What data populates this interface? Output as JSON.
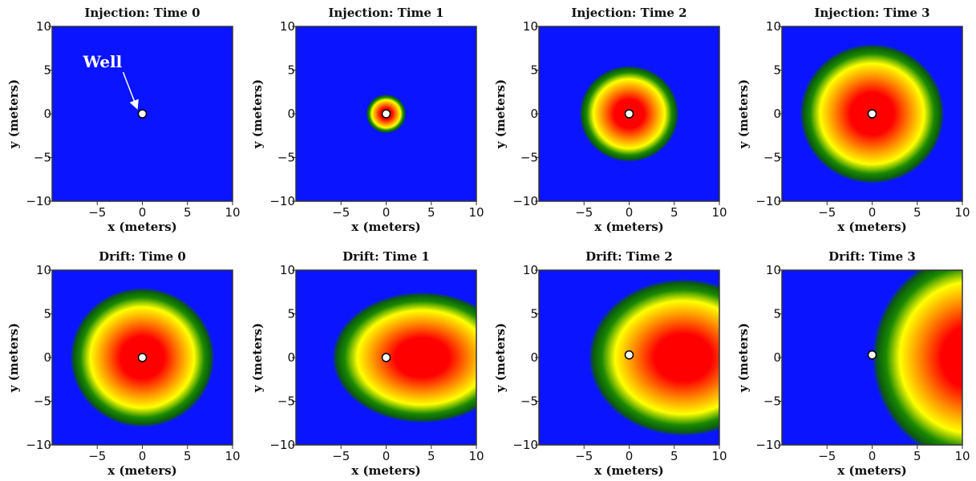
{
  "chart_data": [
    {
      "type": "heatmap",
      "title": "Injection: Time 0",
      "xlabel": "x (meters)",
      "ylabel": "y (meters)",
      "xlim": [
        -10,
        10
      ],
      "ylim": [
        -10,
        10
      ],
      "x_ticks": [
        "−5",
        "0",
        "5",
        "10"
      ],
      "y_ticks": [
        "10",
        "5",
        "0",
        "−5",
        "−10"
      ],
      "plume": null,
      "well": [
        0,
        0
      ],
      "annotation": {
        "text": "Well",
        "points_to": [
          0,
          0
        ]
      }
    },
    {
      "type": "heatmap",
      "title": "Injection: Time 1",
      "xlabel": "x (meters)",
      "ylabel": "y (meters)",
      "xlim": [
        -10,
        10
      ],
      "ylim": [
        -10,
        10
      ],
      "x_ticks": [
        "−5",
        "0",
        "5",
        "10"
      ],
      "y_ticks": [
        "10",
        "5",
        "0",
        "−5",
        "−10"
      ],
      "plume": {
        "center": [
          0,
          0
        ],
        "radius_x": 2.2,
        "radius_y": 2.2
      },
      "well": [
        0,
        0
      ]
    },
    {
      "type": "heatmap",
      "title": "Injection: Time 2",
      "xlabel": "x (meters)",
      "ylabel": "y (meters)",
      "xlim": [
        -10,
        10
      ],
      "ylim": [
        -10,
        10
      ],
      "x_ticks": [
        "−5",
        "0",
        "5",
        "10"
      ],
      "y_ticks": [
        "10",
        "5",
        "0",
        "−5",
        "−10"
      ],
      "plume": {
        "center": [
          0,
          0
        ],
        "radius_x": 5.5,
        "radius_y": 5.5
      },
      "well": [
        0,
        0
      ]
    },
    {
      "type": "heatmap",
      "title": "Injection: Time 3",
      "xlabel": "x (meters)",
      "ylabel": "y (meters)",
      "xlim": [
        -10,
        10
      ],
      "ylim": [
        -10,
        10
      ],
      "x_ticks": [
        "−5",
        "0",
        "5",
        "10"
      ],
      "y_ticks": [
        "10",
        "5",
        "0",
        "−5",
        "−10"
      ],
      "plume": {
        "center": [
          0,
          0
        ],
        "radius_x": 8,
        "radius_y": 8
      },
      "well": [
        0,
        0
      ]
    },
    {
      "type": "heatmap",
      "title": "Drift: Time 0",
      "xlabel": "x (meters)",
      "ylabel": "y (meters)",
      "xlim": [
        -10,
        10
      ],
      "ylim": [
        -10,
        10
      ],
      "x_ticks": [
        "−5",
        "0",
        "5",
        "10"
      ],
      "y_ticks": [
        "10",
        "5",
        "0",
        "−5",
        "−10"
      ],
      "plume": {
        "center": [
          0,
          0
        ],
        "radius_x": 8,
        "radius_y": 8
      },
      "well": [
        0,
        0
      ]
    },
    {
      "type": "heatmap",
      "title": "Drift: Time 1",
      "xlabel": "x (meters)",
      "ylabel": "y (meters)",
      "xlim": [
        -10,
        10
      ],
      "ylim": [
        -10,
        10
      ],
      "x_ticks": [
        "−5",
        "0",
        "5",
        "10"
      ],
      "y_ticks": [
        "10",
        "5",
        "0",
        "−5",
        "−10"
      ],
      "plume": {
        "center": [
          4,
          0
        ],
        "radius_x": 10,
        "radius_y": 7.5
      },
      "well": [
        0,
        0
      ]
    },
    {
      "type": "heatmap",
      "title": "Drift: Time 2",
      "xlabel": "x (meters)",
      "ylabel": "y (meters)",
      "xlim": [
        -10,
        10
      ],
      "ylim": [
        -10,
        10
      ],
      "x_ticks": [
        "−5",
        "0",
        "5",
        "10"
      ],
      "y_ticks": [
        "10",
        "5",
        "0",
        "−5",
        "−10"
      ],
      "plume": {
        "center": [
          6,
          0
        ],
        "radius_x": 10.5,
        "radius_y": 9
      },
      "well": [
        0,
        0.3
      ]
    },
    {
      "type": "heatmap",
      "title": "Drift: Time 3",
      "xlabel": "x (meters)",
      "ylabel": "y (meters)",
      "xlim": [
        -10,
        10
      ],
      "ylim": [
        -10,
        10
      ],
      "x_ticks": [
        "−5",
        "0",
        "5",
        "10"
      ],
      "y_ticks": [
        "10",
        "5",
        "0",
        "−5",
        "−10"
      ],
      "plume": {
        "center": [
          11,
          0
        ],
        "radius_x": 11,
        "radius_y": 12
      },
      "well": [
        0,
        0.3
      ]
    }
  ],
  "colors": {
    "background": "#0a14ff",
    "peak": "#ff0000",
    "orange": "#ff8800",
    "yellow": "#ffff00",
    "green": "#1a8a00",
    "dark_green": "#0b5a10",
    "well_fill": "#ffffff",
    "well_stroke": "#000000",
    "annotation": "#ffffff"
  }
}
